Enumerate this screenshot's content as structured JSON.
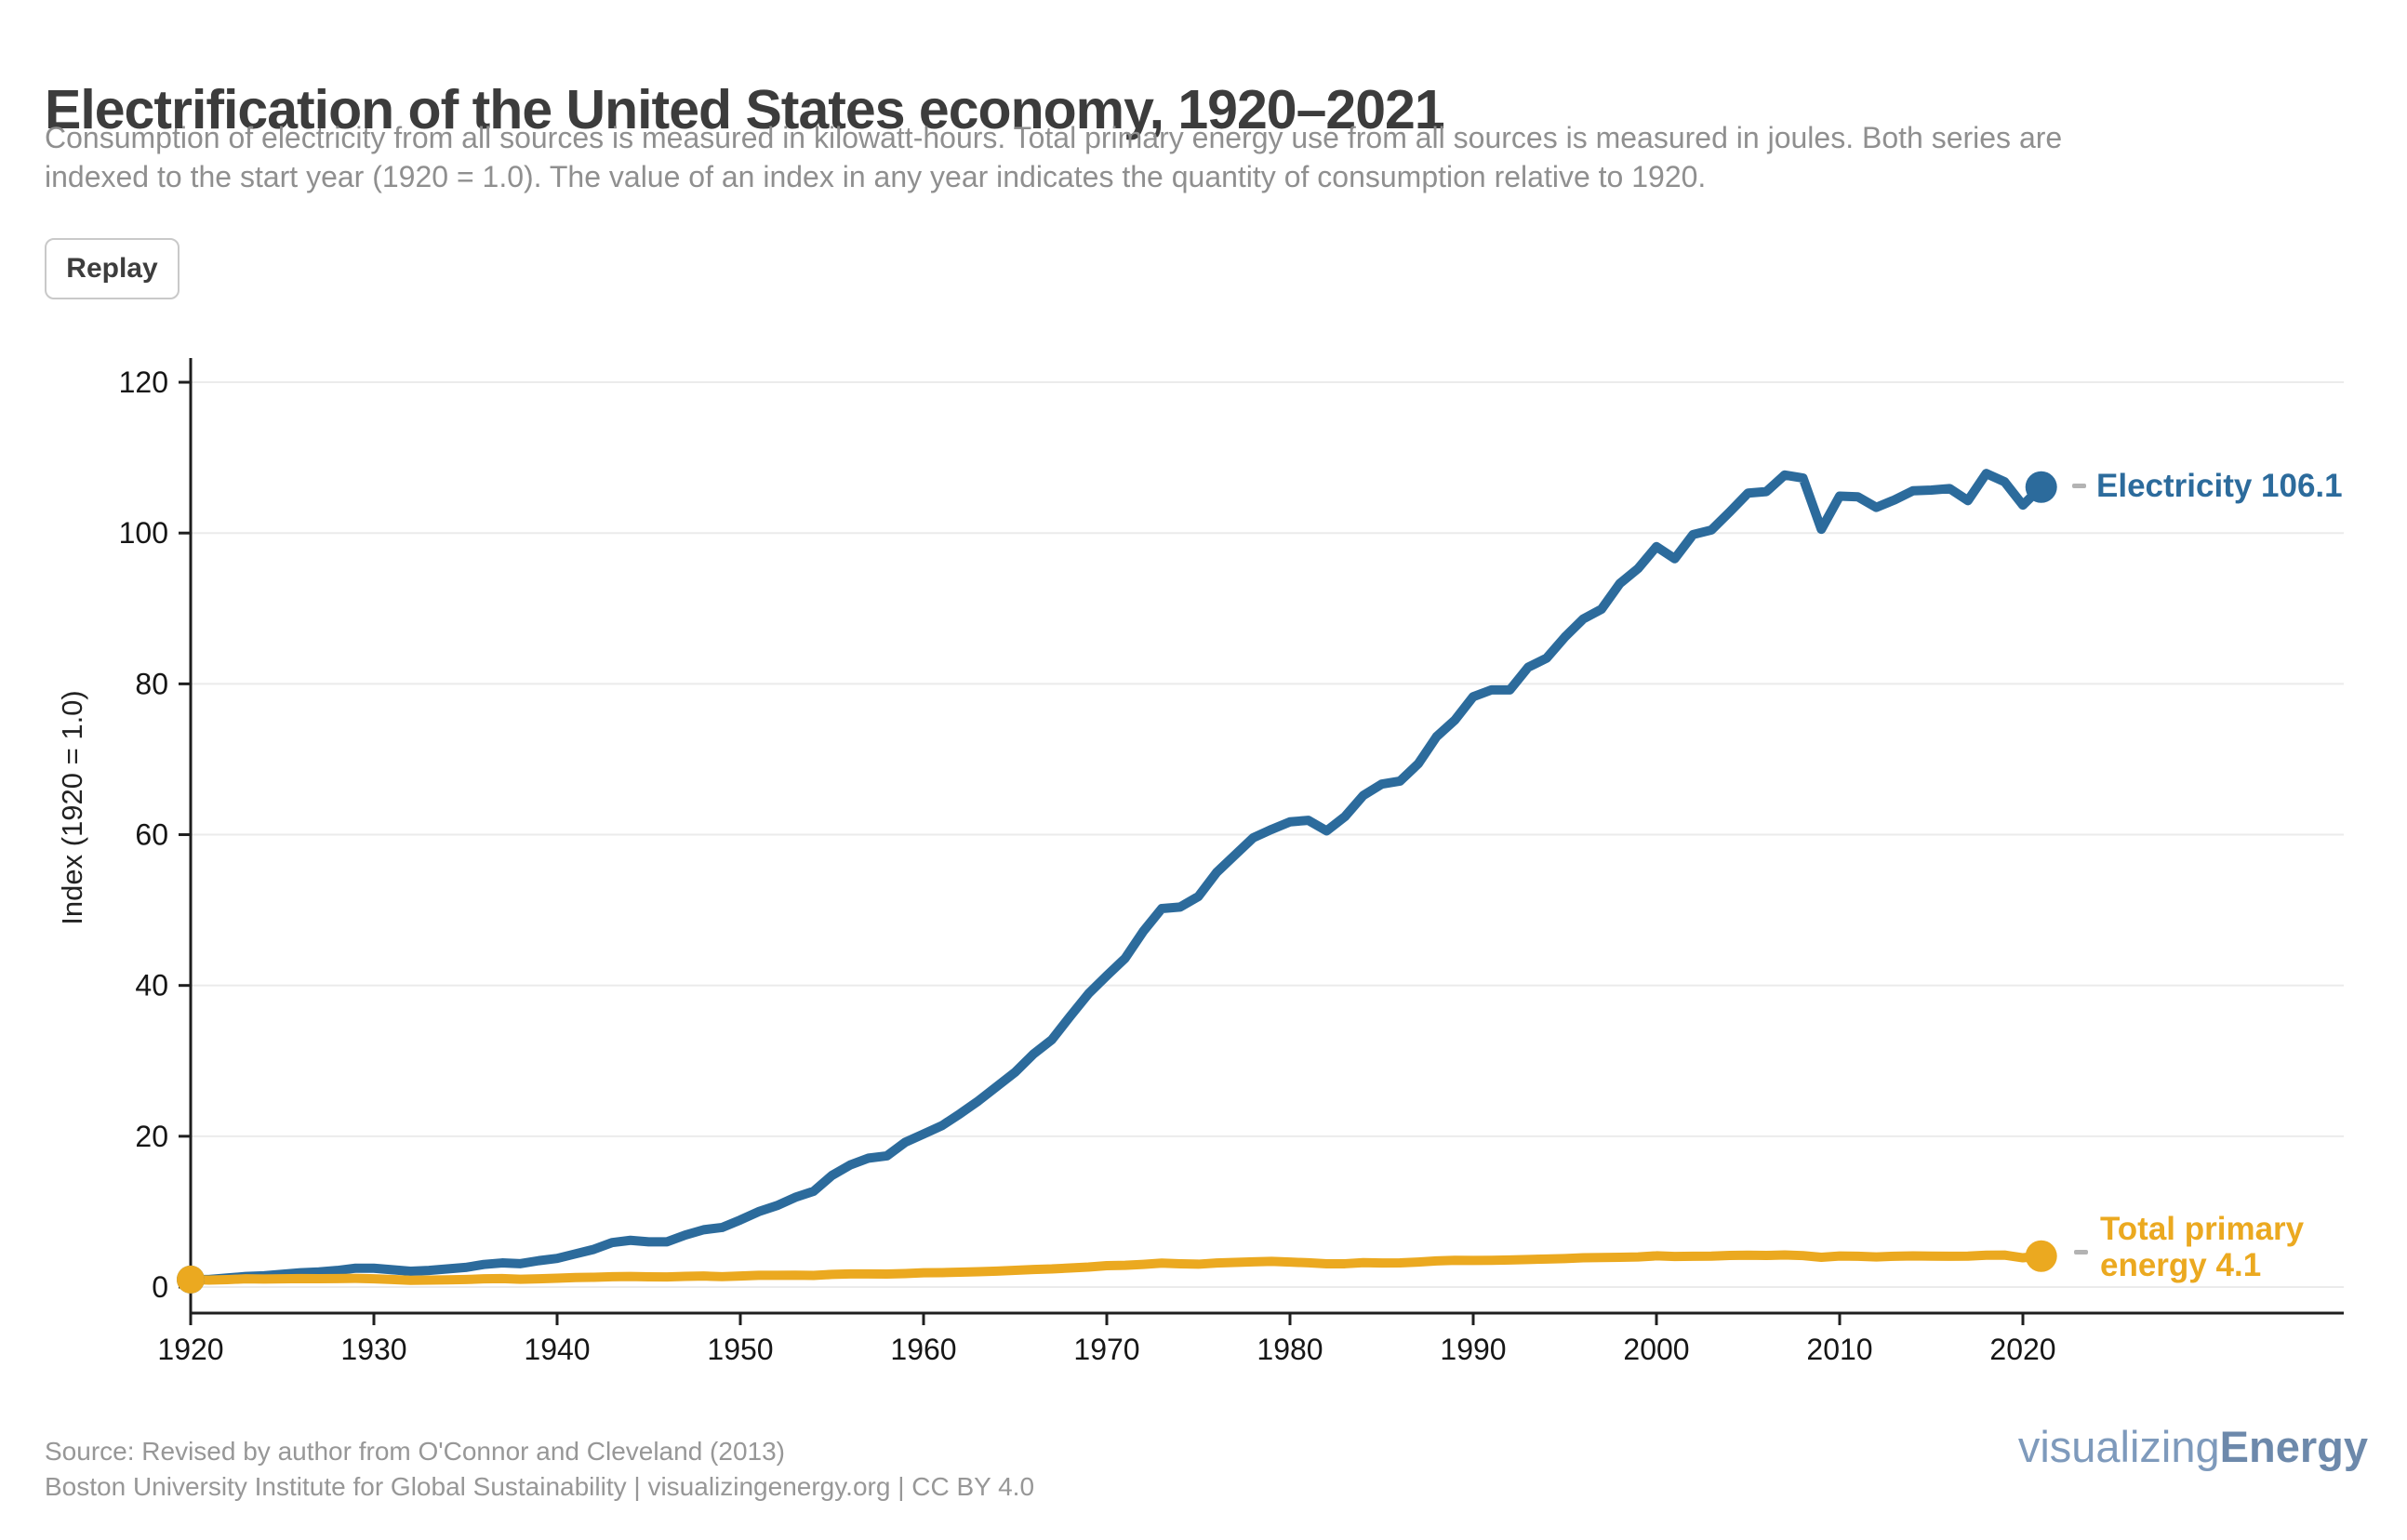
{
  "header": {
    "title": "Electrification of the United States economy, 1920–2021",
    "subtitle_line1": "Consumption of electricity from all sources is measured in kilowatt-hours. Total primary energy use from all sources is measured in joules. Both series are",
    "subtitle_line2": "indexed to the start year (1920 = 1.0). The value of an index in any year indicates the quantity of consumption relative to 1920.",
    "replay_label": "Replay"
  },
  "chart_data": {
    "type": "line",
    "title": "Electrification of the United States economy, 1920–2021",
    "xlabel": "",
    "ylabel": "Index (1920 = 1.0)",
    "x_range": [
      1920,
      2021
    ],
    "x_step": 1,
    "xlim": [
      1920,
      2021
    ],
    "ylim": [
      0,
      124
    ],
    "x_ticks": [
      1920,
      1930,
      1940,
      1950,
      1960,
      1970,
      1980,
      1990,
      2000,
      2010,
      2020
    ],
    "y_ticks": [
      0,
      20,
      40,
      60,
      80,
      100,
      120
    ],
    "grid": "horizontal",
    "legend_position": "end-of-line",
    "series": [
      {
        "name": "Electricity",
        "color": "#2c6b9c",
        "end_value": 106.1,
        "end_label": "Electricity 106.1",
        "values": [
          1.0,
          1.0,
          1.2,
          1.4,
          1.5,
          1.7,
          1.9,
          2.0,
          2.2,
          2.5,
          2.5,
          2.3,
          2.1,
          2.2,
          2.4,
          2.6,
          3.0,
          3.2,
          3.1,
          3.5,
          3.8,
          4.4,
          5.0,
          5.9,
          6.2,
          6.0,
          6.0,
          6.9,
          7.6,
          7.9,
          8.9,
          10.0,
          10.8,
          11.9,
          12.7,
          14.8,
          16.2,
          17.1,
          17.4,
          19.2,
          20.3,
          21.4,
          23.0,
          24.7,
          26.6,
          28.5,
          30.9,
          32.8,
          35.9,
          38.9,
          41.3,
          43.6,
          47.2,
          50.2,
          50.4,
          51.8,
          55.0,
          57.3,
          59.6,
          60.7,
          61.7,
          61.9,
          60.5,
          62.4,
          65.2,
          66.7,
          67.1,
          69.4,
          73.0,
          75.2,
          78.3,
          79.2,
          79.2,
          82.2,
          83.4,
          86.2,
          88.6,
          89.9,
          93.3,
          95.3,
          98.2,
          96.6,
          99.8,
          100.4,
          102.8,
          105.3,
          105.5,
          107.7,
          107.3,
          100.5,
          104.9,
          104.8,
          103.4,
          104.4,
          105.6,
          105.7,
          105.9,
          104.3,
          107.9,
          106.8,
          103.7,
          106.1
        ]
      },
      {
        "name": "Total primary energy",
        "color": "#eba920",
        "end_value": 4.1,
        "end_label_line1": "Total primary",
        "end_label_line2": "energy 4.1",
        "values": [
          1.0,
          0.93,
          0.99,
          1.09,
          1.07,
          1.09,
          1.13,
          1.11,
          1.12,
          1.16,
          1.1,
          1.0,
          0.9,
          0.93,
          0.96,
          1.0,
          1.09,
          1.12,
          1.04,
          1.1,
          1.17,
          1.26,
          1.3,
          1.37,
          1.41,
          1.36,
          1.34,
          1.42,
          1.46,
          1.38,
          1.47,
          1.55,
          1.55,
          1.58,
          1.54,
          1.68,
          1.74,
          1.74,
          1.73,
          1.79,
          1.89,
          1.91,
          1.97,
          2.04,
          2.11,
          2.22,
          2.33,
          2.4,
          2.53,
          2.65,
          2.84,
          2.88,
          3.01,
          3.17,
          3.09,
          3.03,
          3.19,
          3.27,
          3.34,
          3.41,
          3.31,
          3.22,
          3.09,
          3.09,
          3.24,
          3.19,
          3.2,
          3.32,
          3.47,
          3.55,
          3.53,
          3.54,
          3.59,
          3.66,
          3.72,
          3.78,
          3.89,
          3.92,
          3.94,
          3.99,
          4.14,
          4.05,
          4.09,
          4.1,
          4.19,
          4.22,
          4.19,
          4.25,
          4.17,
          3.95,
          4.11,
          4.08,
          4.0,
          4.09,
          4.13,
          4.1,
          4.09,
          4.1,
          4.22,
          4.24,
          3.88,
          4.1
        ]
      }
    ]
  },
  "legend": {
    "electricity_label": "Electricity 106.1",
    "energy_label_line1": "Total primary",
    "energy_label_line2": "energy 4.1"
  },
  "footer": {
    "source_line1": "Source: Revised by author from O'Connor and Cleveland (2013)",
    "source_line2": "Boston University Institute for Global Sustainability | visualizingenergy.org | CC BY 4.0",
    "logo_normal": "visualizing",
    "logo_bold": "Energy"
  },
  "colors": {
    "electricity": "#2c6b9c",
    "energy": "#eba920",
    "grid": "#ebebeb",
    "axis": "#1f1f1f",
    "tick_text": "#161616"
  }
}
